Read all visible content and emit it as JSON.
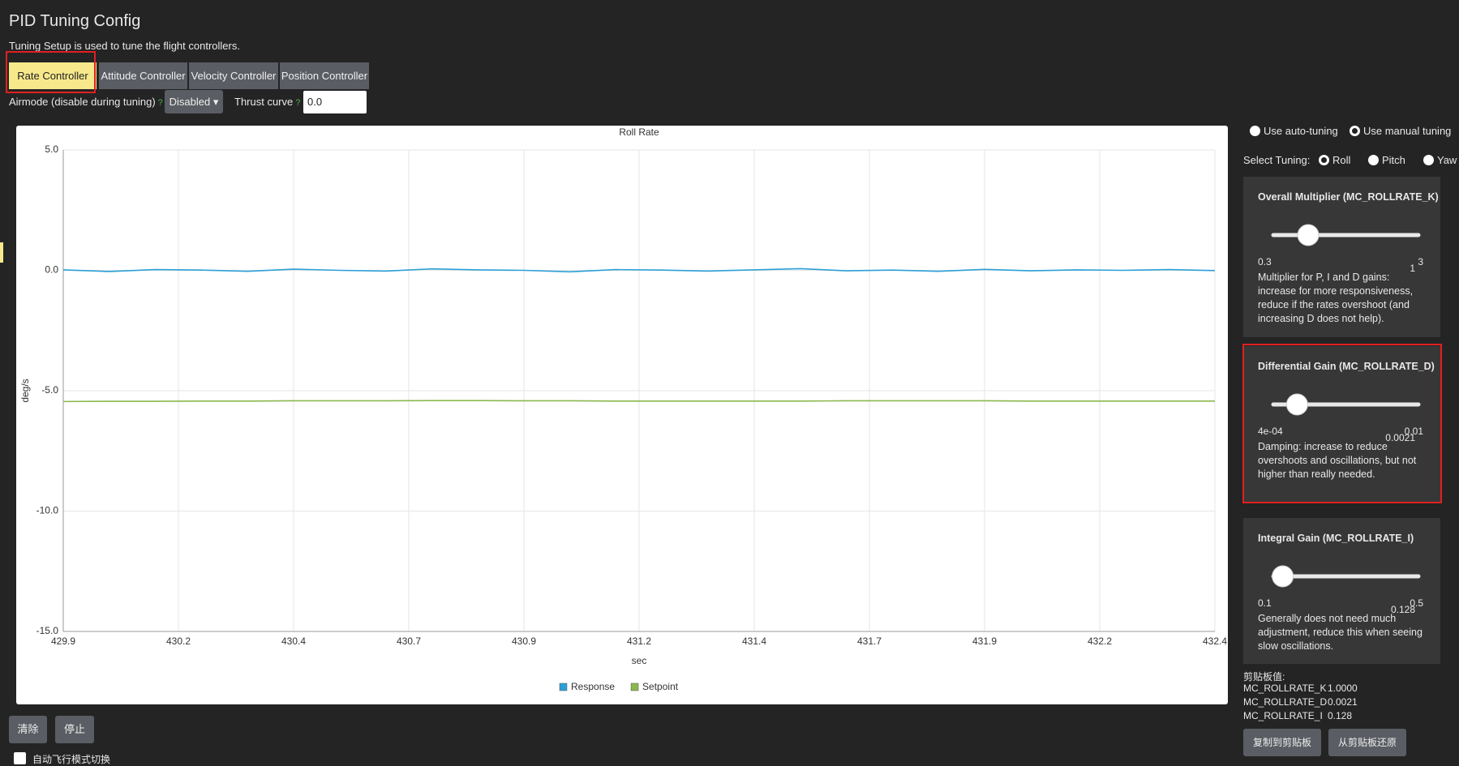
{
  "header": {
    "title": "PID Tuning Config",
    "subtitle": "Tuning Setup is used to tune the flight controllers."
  },
  "tabs": [
    "Rate Controller",
    "Attitude Controller",
    "Velocity Controller",
    "Position Controller"
  ],
  "controls": {
    "airmode_label": "Airmode (disable during tuning)",
    "help": "?",
    "airmode_value": "Disabled",
    "thrust_label": "Thrust curve",
    "thrust_value": "0.0"
  },
  "chart_data": {
    "type": "line",
    "title": "Roll Rate",
    "x_label": "sec",
    "y_label": "deg/s",
    "x": [
      429.9,
      430.0,
      430.1,
      430.2,
      430.3,
      430.4,
      430.5,
      430.6,
      430.7,
      430.8,
      430.9,
      431.0,
      431.1,
      431.2,
      431.3,
      431.4,
      431.5,
      431.6,
      431.7,
      431.8,
      431.9,
      432.0,
      432.1,
      432.2,
      432.3,
      432.4
    ],
    "series": [
      {
        "name": "Response",
        "color": "#2b9fd8",
        "values": [
          0.02,
          -0.05,
          0.03,
          0.01,
          -0.04,
          0.05,
          0.0,
          -0.03,
          0.06,
          0.02,
          0.0,
          -0.06,
          0.03,
          0.01,
          -0.03,
          0.02,
          0.07,
          -0.02,
          0.01,
          -0.04,
          0.04,
          -0.02,
          0.02,
          0.0,
          0.03,
          -0.01
        ]
      },
      {
        "name": "Setpoint",
        "color": "#8bb74d",
        "values": [
          -5.45,
          -5.44,
          -5.44,
          -5.43,
          -5.43,
          -5.42,
          -5.42,
          -5.42,
          -5.41,
          -5.41,
          -5.42,
          -5.42,
          -5.43,
          -5.43,
          -5.43,
          -5.43,
          -5.43,
          -5.42,
          -5.42,
          -5.42,
          -5.42,
          -5.43,
          -5.43,
          -5.43,
          -5.43,
          -5.43
        ]
      }
    ],
    "xlim": [
      429.9,
      432.4
    ],
    "xticks": [
      429.9,
      {
        "value": 430.15,
        "label": "430.2"
      },
      430.4,
      {
        "value": 430.65,
        "label": "430.7"
      },
      430.9,
      {
        "value": 431.15,
        "label": "431.2"
      },
      431.4,
      {
        "value": 431.65,
        "label": "431.7"
      },
      431.9,
      {
        "value": 432.15,
        "label": "432.2"
      },
      432.4
    ],
    "ylim": [
      -15,
      5
    ],
    "yticks": [
      {
        "value": -15,
        "label": "-15.0"
      },
      {
        "value": -10,
        "label": "-10.0"
      },
      {
        "value": -5,
        "label": "-5.0"
      },
      {
        "value": 0,
        "label": "0.0"
      },
      {
        "value": 5,
        "label": "5.0"
      }
    ],
    "grid": true,
    "legend": "bottom"
  },
  "buttons": {
    "clear": "清除",
    "stop": "停止"
  },
  "auto_switch": "自动飞行模式切换",
  "tuning": {
    "auto": "Use auto-tuning",
    "manual": "Use manual tuning",
    "select_label": "Select Tuning:",
    "axes": [
      "Roll",
      "Pitch",
      "Yaw"
    ],
    "cards": [
      {
        "title": "Overall Multiplier (MC_ROLLRATE_K)",
        "min": 0.3,
        "max": 3,
        "value": 1,
        "description": "Multiplier for P, I and D gains: increase for more responsiveness, reduce if the rates overshoot (and increasing D does not help)."
      },
      {
        "title": "Differential Gain (MC_ROLLRATE_D)",
        "min": {
          "value": 0.0004,
          "label": "4e-04"
        },
        "max": 0.01,
        "value": 0.0021,
        "description": "Damping: increase to reduce overshoots and oscillations, but not higher than really needed."
      },
      {
        "title": "Integral Gain (MC_ROLLRATE_I)",
        "min": 0.1,
        "max": 0.5,
        "value": 0.128,
        "description": "Generally does not need much adjustment, reduce this when seeing slow oscillations."
      }
    ]
  },
  "clipboard": {
    "title": "剪贴板值:",
    "rows": [
      [
        "MC_ROLLRATE_K",
        "1.0000"
      ],
      [
        "MC_ROLLRATE_D",
        "0.0021"
      ],
      [
        "MC_ROLLRATE_I",
        "0.128"
      ]
    ],
    "copy": "复制到剪贴板",
    "restore": "从剪贴板还原"
  }
}
